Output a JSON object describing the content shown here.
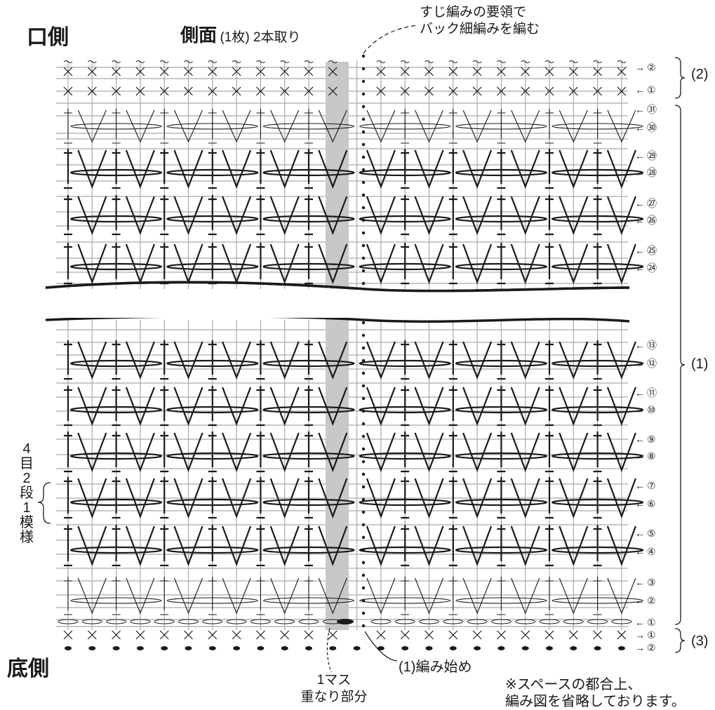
{
  "labels": {
    "mouth_side": "口側",
    "title": "側面",
    "subtitle": "(1枚) 2本取り",
    "back_single_note": [
      "すじ編みの要領で",
      "バック細編みを編む"
    ],
    "bottom_side": "底側",
    "overlap_note": [
      "1マス",
      "重なり部分"
    ],
    "start_label": "(1)編み始め",
    "omission_note": [
      "※スペースの都合上、",
      "編み図を省略しております。"
    ],
    "section_1": "(1)",
    "section_2": "(2)",
    "section_3": "(3)",
    "repeat_vertical": [
      "4",
      "目",
      "2",
      "段",
      "1",
      "模",
      "様"
    ]
  },
  "rows": {
    "top": [
      {
        "arrow": "→",
        "num": "②"
      },
      {
        "arrow": "←",
        "num": "①"
      },
      {
        "arrow": "←",
        "num": "㉛"
      },
      {
        "arrow": "←",
        "num": "㉚"
      },
      {
        "arrow": "←",
        "num": "㉙"
      },
      {
        "arrow": "←",
        "num": "㉘"
      },
      {
        "arrow": "←",
        "num": "㉗"
      },
      {
        "arrow": "←",
        "num": "㉖"
      },
      {
        "arrow": "←",
        "num": "㉕"
      },
      {
        "arrow": "←",
        "num": "㉔"
      }
    ],
    "bottom": [
      {
        "arrow": "←",
        "num": "⑬"
      },
      {
        "arrow": "←",
        "num": "⑫"
      },
      {
        "arrow": "←",
        "num": "⑪"
      },
      {
        "arrow": "←",
        "num": "⑩"
      },
      {
        "arrow": "←",
        "num": "⑨"
      },
      {
        "arrow": "←",
        "num": "⑧"
      },
      {
        "arrow": "←",
        "num": "⑦"
      },
      {
        "arrow": "←",
        "num": "⑥"
      },
      {
        "arrow": "←",
        "num": "⑤"
      },
      {
        "arrow": "←",
        "num": "④"
      },
      {
        "arrow": "←",
        "num": "③"
      },
      {
        "arrow": "←",
        "num": "②"
      },
      {
        "arrow": "←",
        "num": "①"
      },
      {
        "arrow": "→",
        "num": "①"
      },
      {
        "arrow": "→",
        "num": "②"
      }
    ]
  },
  "colors": {
    "grid": "#a9a9a9",
    "ink": "#1a1a1a",
    "overlap": "#c8c8c8"
  }
}
